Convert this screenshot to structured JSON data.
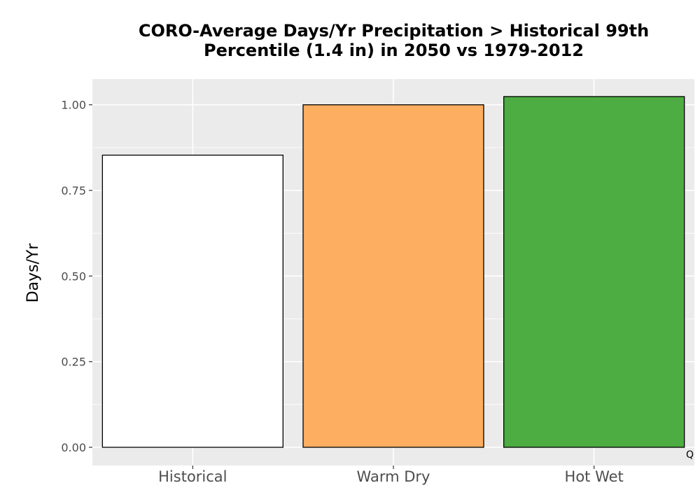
{
  "chart_data": {
    "type": "bar",
    "title_line1": "CORO-Average Days/Yr Precipitation > Historical 99th",
    "title_line2": "Percentile (1.4 in) in 2050 vs 1979-2012",
    "xlabel": "",
    "ylabel": "Days/Yr",
    "categories": [
      "Historical",
      "Warm Dry",
      "Hot Wet"
    ],
    "values": [
      0.853,
      1.0,
      1.024
    ],
    "colors": [
      "#ffffff",
      "#fdae61",
      "#4dac42"
    ],
    "ylim": [
      0,
      1.075
    ],
    "yticks": [
      0.0,
      0.25,
      0.5,
      0.75,
      1.0
    ],
    "ytick_labels": [
      "0.00",
      "0.25",
      "0.50",
      "0.75",
      "1.00"
    ],
    "grid": true,
    "panel_background": "#ebebeb",
    "corner_mark": "Q"
  }
}
